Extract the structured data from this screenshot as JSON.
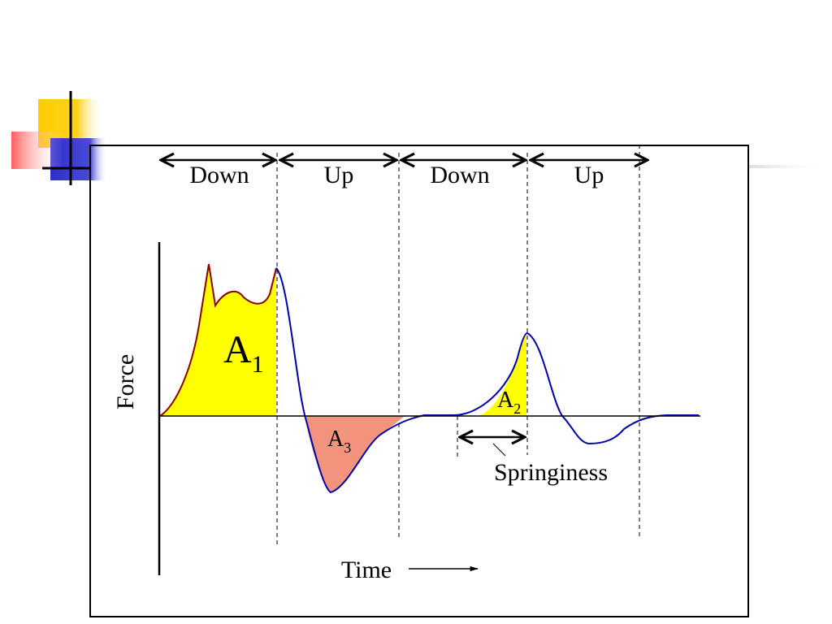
{
  "phases": [
    "Down",
    "Up",
    "Down",
    "Up"
  ],
  "labels": {
    "force": "Force",
    "time": "Time",
    "springiness": "Springiness",
    "area1": "A",
    "area1_sub": "1",
    "area2": "A",
    "area2_sub": "2",
    "area3": "A",
    "area3_sub": "3"
  },
  "colors": {
    "positive_area": "#ffff00",
    "negative_area": "#f2937e",
    "first_bite_curve": "#8b0000",
    "second_bite_curve": "#0000aa",
    "deco_yellow": "#ffcc00",
    "deco_blue": "#2e2ecc",
    "deco_red": "#ff3333"
  }
}
